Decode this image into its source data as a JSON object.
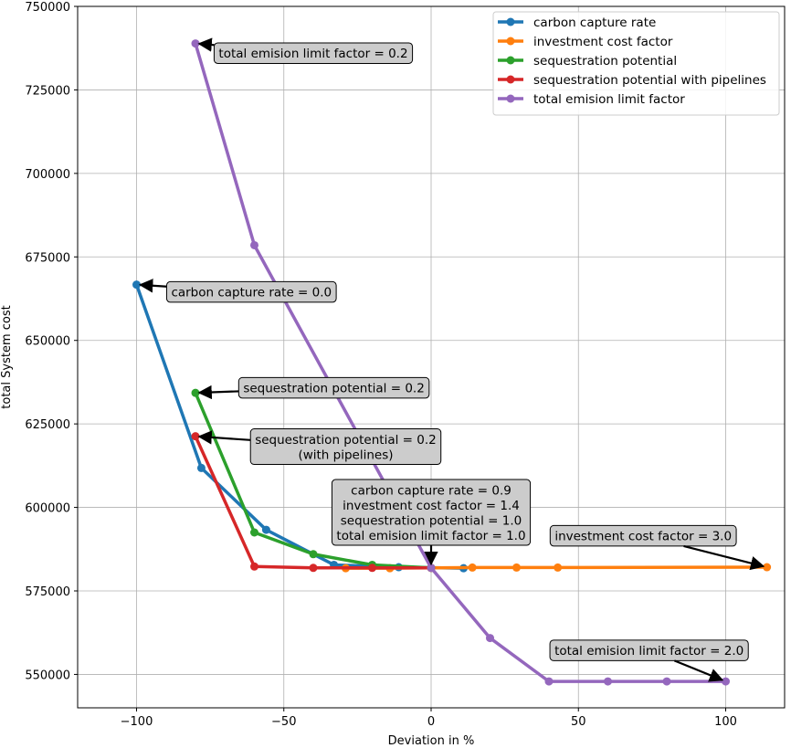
{
  "chart_data": {
    "type": "line",
    "xlabel": "Deviation in %",
    "ylabel": "total System cost",
    "xlim": [
      -120,
      120
    ],
    "ylim": [
      540000,
      750000
    ],
    "x_ticks": [
      -100,
      -50,
      0,
      50,
      100
    ],
    "x_tick_labels": [
      "−100",
      "−50",
      "0",
      "50",
      "100"
    ],
    "y_ticks": [
      550000,
      575000,
      600000,
      625000,
      650000,
      675000,
      700000,
      725000,
      750000
    ],
    "y_tick_labels": [
      "550000",
      "575000",
      "600000",
      "625000",
      "650000",
      "675000",
      "700000",
      "725000",
      "750000"
    ],
    "grid": true,
    "legend_position": "top-right",
    "series": [
      {
        "name": "carbon capture rate",
        "color": "#1f77b4",
        "points": [
          [
            -100,
            666700
          ],
          [
            -78,
            611800
          ],
          [
            -56,
            593300
          ],
          [
            -33,
            582800
          ],
          [
            -11,
            582100
          ],
          [
            11,
            581800
          ]
        ]
      },
      {
        "name": "investment cost factor",
        "color": "#ff7f0e",
        "points": [
          [
            -29,
            581800
          ],
          [
            -14,
            581800
          ],
          [
            0,
            581900
          ],
          [
            14,
            582000
          ],
          [
            29,
            582000
          ],
          [
            43,
            582000
          ],
          [
            114,
            582100
          ]
        ]
      },
      {
        "name": "sequestration potential",
        "color": "#2ca02c",
        "points": [
          [
            -80,
            634300
          ],
          [
            -60,
            592500
          ],
          [
            -40,
            586000
          ],
          [
            -20,
            582800
          ],
          [
            0,
            581900
          ]
        ]
      },
      {
        "name": "sequestration potential with pipelines",
        "color": "#d62728",
        "points": [
          [
            -80,
            621300
          ],
          [
            -60,
            582300
          ],
          [
            -40,
            581900
          ],
          [
            -20,
            581900
          ],
          [
            0,
            581900
          ]
        ]
      },
      {
        "name": "total emision limit factor",
        "color": "#9467bd",
        "points": [
          [
            -80,
            738900
          ],
          [
            -60,
            678500
          ],
          [
            0,
            581900
          ],
          [
            20,
            560900
          ],
          [
            40,
            547900
          ],
          [
            60,
            547900
          ],
          [
            80,
            547900
          ],
          [
            100,
            547900
          ]
        ]
      }
    ],
    "annotations": [
      {
        "lines": [
          "total emision limit factor = 0.2"
        ],
        "target": [
          -80,
          738900
        ],
        "text_at": [
          -40,
          736000
        ]
      },
      {
        "lines": [
          "carbon capture rate = 0.0"
        ],
        "target": [
          -100,
          666700
        ],
        "text_at": [
          -61,
          664500
        ]
      },
      {
        "lines": [
          "sequestration potential = 0.2"
        ],
        "target": [
          -80,
          634300
        ],
        "text_at": [
          -33,
          635800
        ]
      },
      {
        "lines": [
          "sequestration potential = 0.2",
          "(with pipelines)"
        ],
        "target": [
          -80,
          621300
        ],
        "text_at": [
          -29,
          618200
        ]
      },
      {
        "lines": [
          "carbon capture rate = 0.9",
          "investment cost factor = 1.4",
          "sequestration potential = 1.0",
          "total emision limit factor = 1.0"
        ],
        "target": [
          0,
          581900
        ],
        "text_at": [
          0,
          598500
        ]
      },
      {
        "lines": [
          "investment cost factor = 3.0"
        ],
        "target": [
          114,
          582100
        ],
        "text_at": [
          72,
          591500
        ]
      },
      {
        "lines": [
          "total emision limit factor = 2.0"
        ],
        "target": [
          100,
          547900
        ],
        "text_at": [
          74,
          557200
        ]
      }
    ]
  }
}
